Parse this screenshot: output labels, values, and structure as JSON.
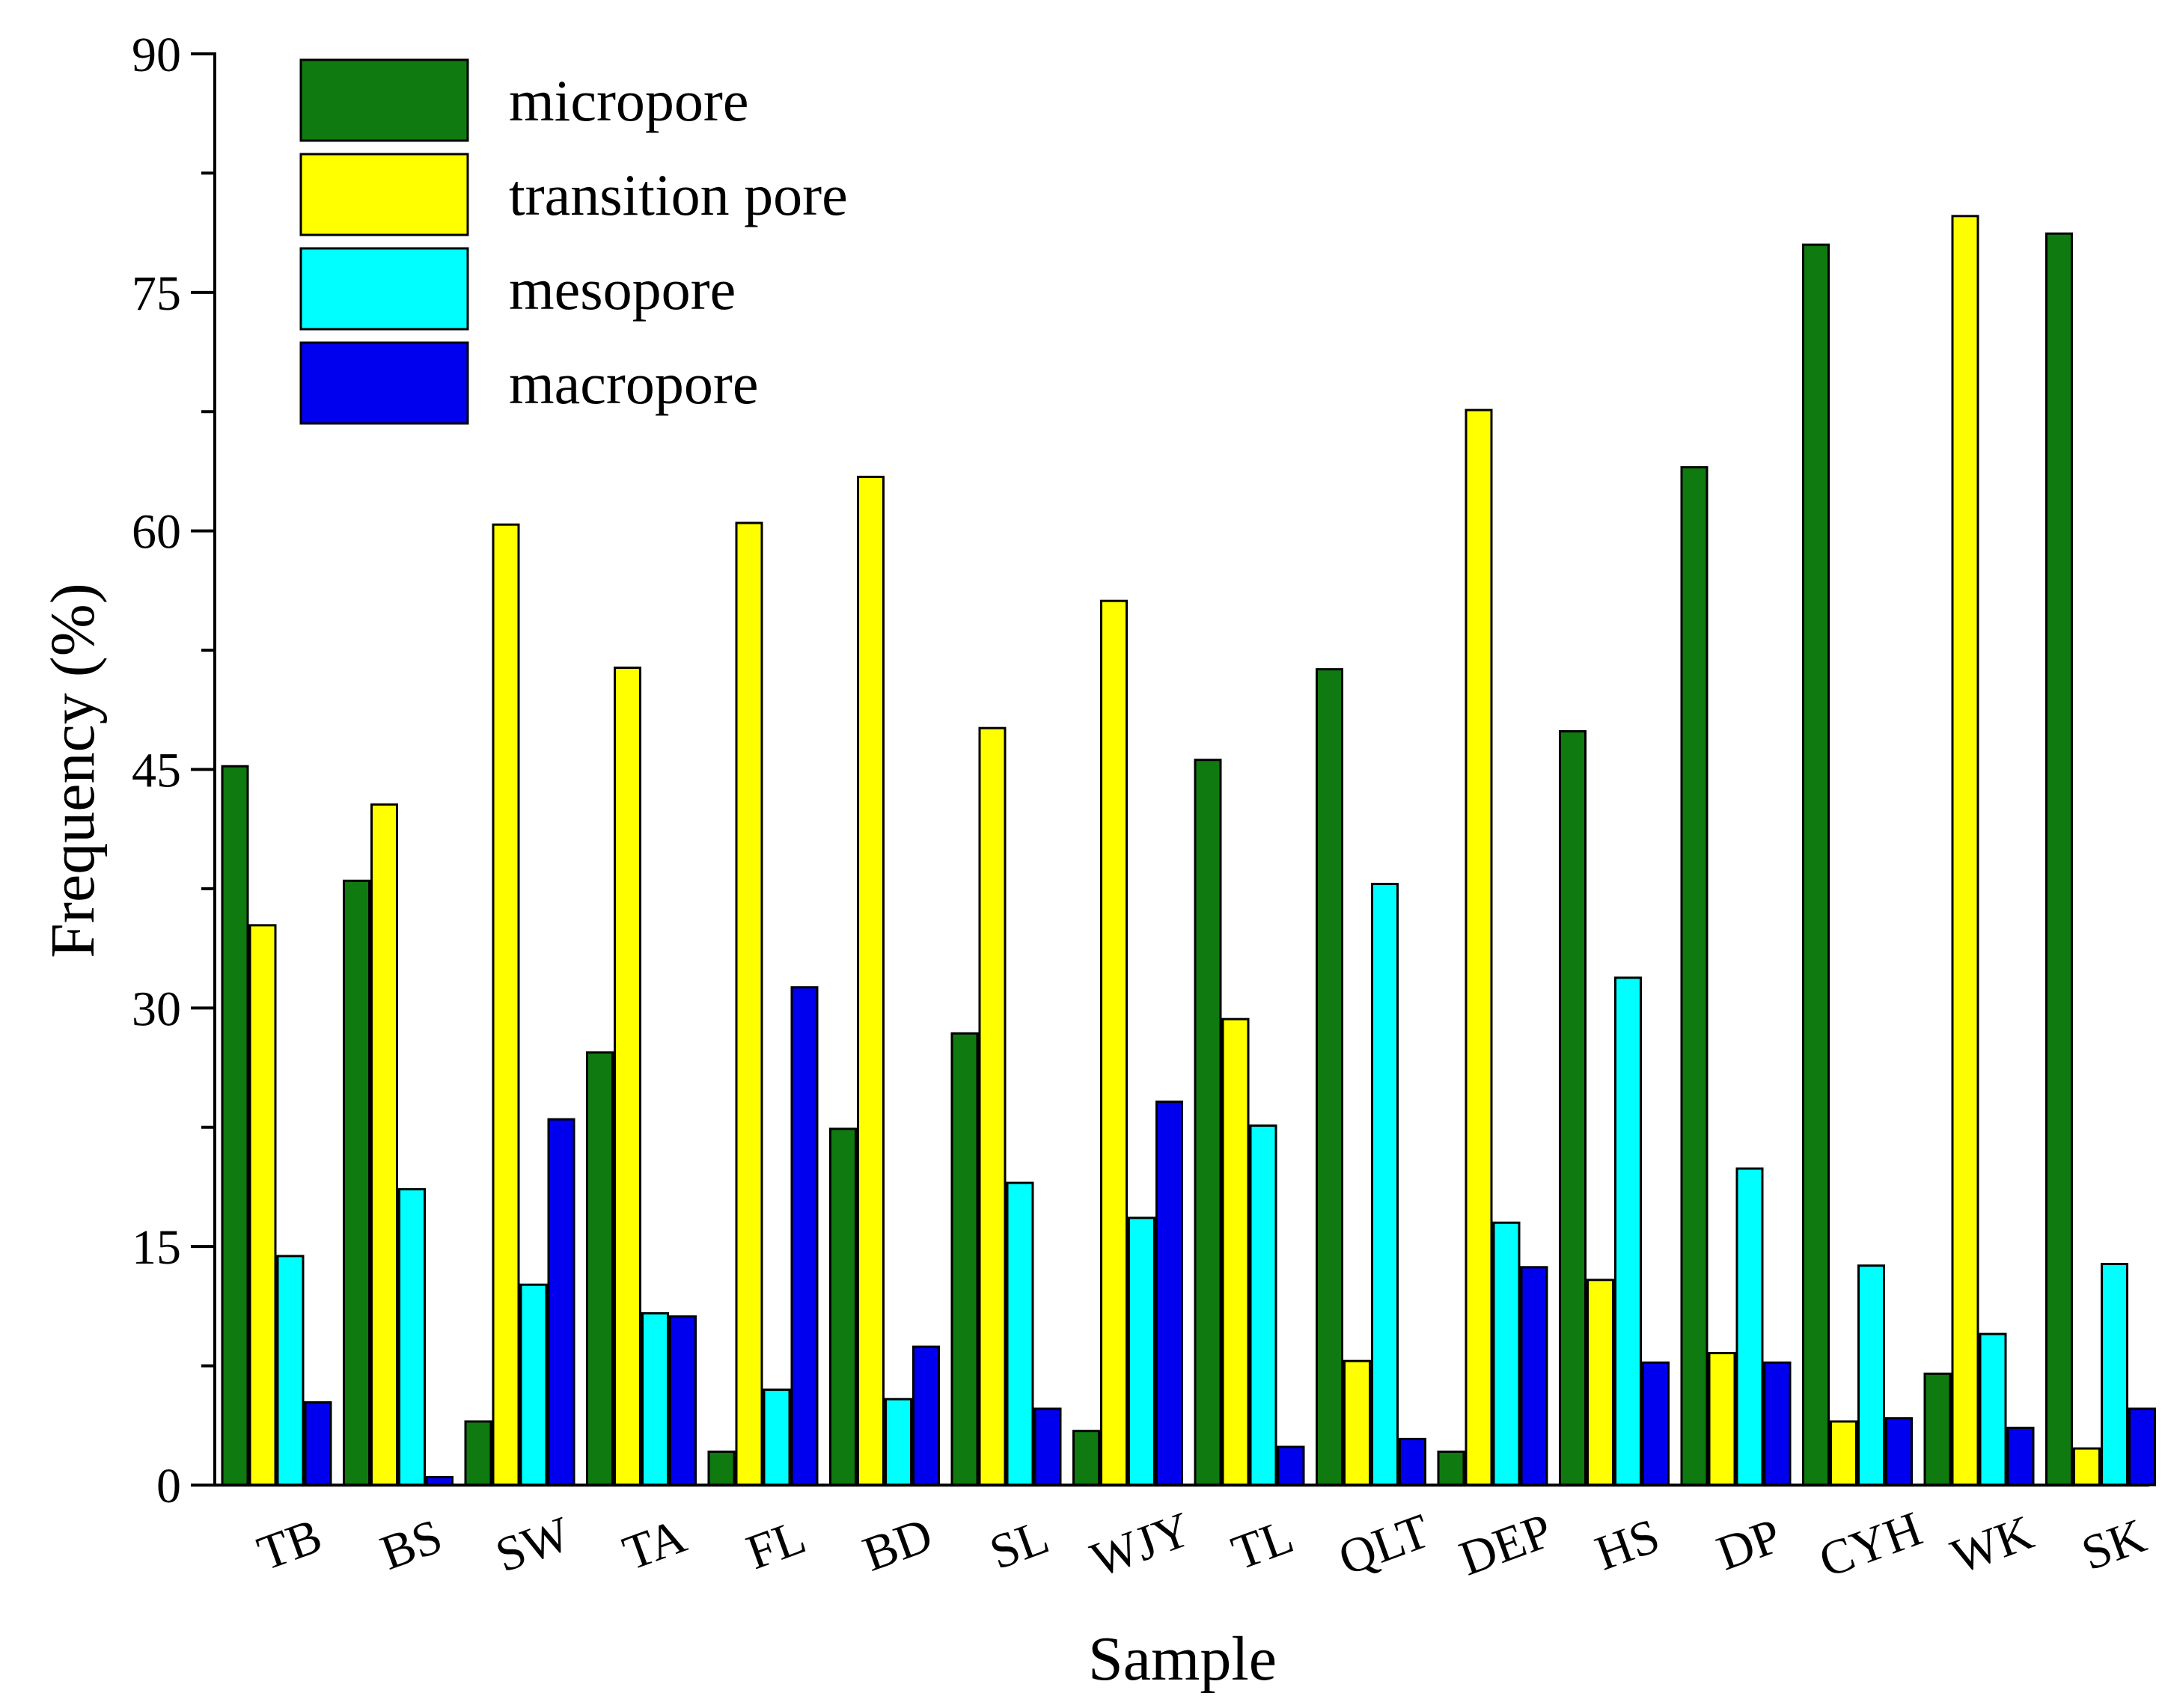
{
  "chart_data": {
    "type": "bar",
    "title": "",
    "xlabel": "Sample",
    "ylabel": "Frequency (%)",
    "ylim": [
      0,
      90
    ],
    "yticks": [
      "0",
      "15",
      "30",
      "45",
      "60",
      "75",
      "90"
    ],
    "ytick_values": [
      0,
      15,
      30,
      45,
      60,
      75,
      90
    ],
    "grid": false,
    "legend_position": "top-left",
    "categories": [
      "TB",
      "BS",
      "SW",
      "TA",
      "FL",
      "BD",
      "SL",
      "WJY",
      "TL",
      "QLT",
      "DEP",
      "HS",
      "DP",
      "CYH",
      "WK",
      "SK"
    ],
    "series": [
      {
        "name": "micropore",
        "color": "#0f7a0f",
        "values": [
          45.2,
          38.0,
          4.0,
          27.2,
          2.1,
          22.4,
          28.4,
          3.4,
          45.6,
          51.3,
          2.1,
          47.4,
          64.0,
          78.0,
          7.0,
          78.7
        ]
      },
      {
        "name": "transition pore",
        "color": "#ffff00",
        "values": [
          35.2,
          42.8,
          60.4,
          51.4,
          60.5,
          63.4,
          47.6,
          55.6,
          29.3,
          7.8,
          67.6,
          12.9,
          8.3,
          4.0,
          79.8,
          2.3
        ]
      },
      {
        "name": "mesopore",
        "color": "#00ffff",
        "values": [
          14.4,
          18.6,
          12.6,
          10.8,
          6.0,
          5.4,
          19.0,
          16.8,
          22.6,
          37.8,
          16.5,
          31.9,
          19.9,
          13.8,
          9.5,
          13.9
        ]
      },
      {
        "name": "macropore",
        "color": "#0000ee",
        "values": [
          5.2,
          0.5,
          23.0,
          10.6,
          31.3,
          8.7,
          4.8,
          24.1,
          2.4,
          2.9,
          13.7,
          7.7,
          7.7,
          4.2,
          3.6,
          4.8
        ]
      }
    ]
  }
}
